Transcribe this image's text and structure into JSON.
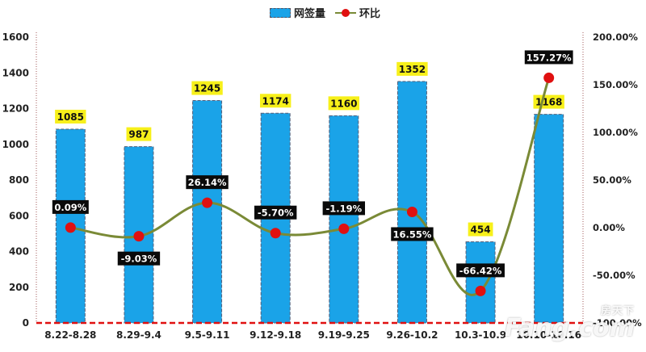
{
  "chart_data": {
    "type": "bar",
    "categories": [
      "8.22-8.28",
      "8.29-9.4",
      "9.5-9.11",
      "9.12-9.18",
      "9.19-9.25",
      "9.26-10.2",
      "10.3-10.9",
      "10.10-10.16"
    ],
    "series": [
      {
        "name": "网签量",
        "type": "bar",
        "axis": "left",
        "values": [
          1085,
          987,
          1245,
          1174,
          1160,
          1352,
          454,
          1168
        ],
        "labels": [
          "1085",
          "987",
          "1245",
          "1174",
          "1160",
          "1352",
          "454",
          "1168"
        ],
        "color": "#1aa3e8"
      },
      {
        "name": "环比",
        "type": "line",
        "axis": "right",
        "values": [
          0.09,
          -9.03,
          26.14,
          -5.7,
          -1.19,
          16.55,
          -66.42,
          157.27
        ],
        "labels": [
          "0.09%",
          "-9.03%",
          "26.14%",
          "-5.70%",
          "-1.19%",
          "16.55%",
          "-66.42%",
          "157.27%"
        ],
        "color": "#7a8a36",
        "marker_color": "#e01010"
      }
    ],
    "y_left": {
      "min": 0,
      "max": 1600,
      "ticks": [
        "0",
        "200",
        "400",
        "600",
        "800",
        "1000",
        "1200",
        "1400",
        "1600"
      ]
    },
    "y_right": {
      "min": -100,
      "max": 200,
      "ticks": [
        "-100.00%",
        "-50.00%",
        "0.00%",
        "50.00%",
        "100.00%",
        "150.00%",
        "200.00%"
      ]
    },
    "legend": "top-center",
    "grid": false
  },
  "watermark": {
    "line1": "房天下",
    "line2": "Fang.com"
  }
}
